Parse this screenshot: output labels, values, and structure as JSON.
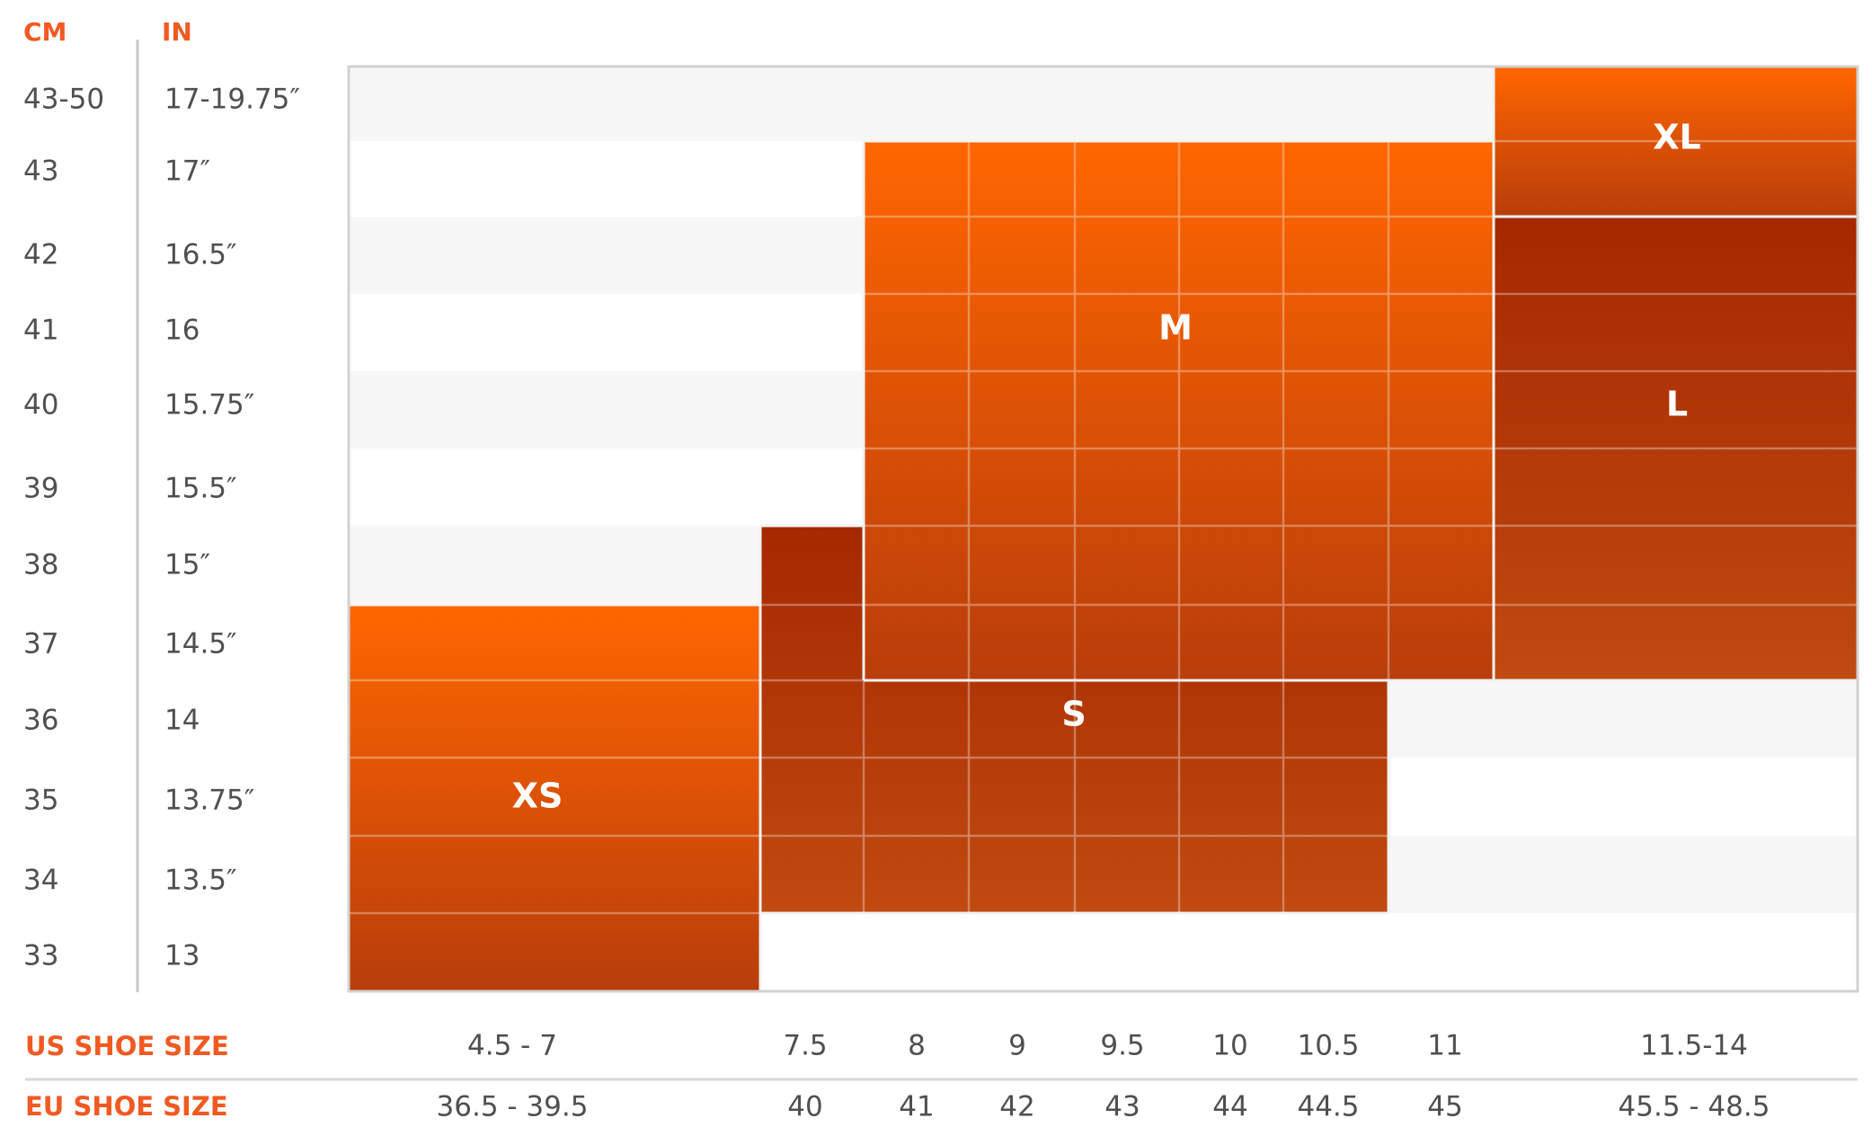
{
  "chart_data": {
    "type": "heatmap",
    "headers": {
      "cm": "CM",
      "in": "IN"
    },
    "rows": [
      {
        "cm": "43-50",
        "in": "17-19.75″"
      },
      {
        "cm": "43",
        "in": "17″"
      },
      {
        "cm": "42",
        "in": "16.5″"
      },
      {
        "cm": "41",
        "in": "16"
      },
      {
        "cm": "40",
        "in": "15.75″"
      },
      {
        "cm": "39",
        "in": "15.5″"
      },
      {
        "cm": "38",
        "in": "15″"
      },
      {
        "cm": "37",
        "in": "14.5″"
      },
      {
        "cm": "36",
        "in": "14"
      },
      {
        "cm": "35",
        "in": "13.75″"
      },
      {
        "cm": "34",
        "in": "13.5″"
      },
      {
        "cm": "33",
        "in": "13"
      }
    ],
    "us_label": "US SHOE SIZE",
    "eu_label": "EU SHOE SIZE",
    "columns": [
      {
        "us": "4.5 - 7",
        "eu": "36.5 - 39.5"
      },
      {
        "us": "7.5",
        "eu": "40"
      },
      {
        "us": "8",
        "eu": "41"
      },
      {
        "us": "9",
        "eu": "42"
      },
      {
        "us": "9.5",
        "eu": "43"
      },
      {
        "us": "10",
        "eu": "44"
      },
      {
        "us": "10.5",
        "eu": "44.5"
      },
      {
        "us": "11",
        "eu": "45"
      },
      {
        "us": "11.5-14",
        "eu": "45.5 - 48.5"
      }
    ],
    "sizes": [
      {
        "label": "XS",
        "columns": [
          "4.5 - 7"
        ],
        "cm_rows": [
          "37",
          "36",
          "35",
          "34",
          "33"
        ],
        "color_top": "#ff6600",
        "color_bottom": "#b83d0b"
      },
      {
        "label": "S",
        "columns": [
          "7.5",
          "8",
          "9",
          "9.5",
          "10",
          "10.5"
        ],
        "cm_rows": [
          "38",
          "37",
          "36",
          "35",
          "34"
        ],
        "color_top": "#a62800",
        "color_bottom": "#c04a10"
      },
      {
        "label": "M",
        "columns": [
          "8",
          "9",
          "9.5",
          "10",
          "10.5",
          "11"
        ],
        "cm_rows": [
          "43",
          "42",
          "41",
          "40",
          "39",
          "38",
          "37"
        ],
        "color_top": "#ff6600",
        "color_bottom": "#b93d0a"
      },
      {
        "label": "L",
        "columns": [
          "11.5-14"
        ],
        "cm_rows": [
          "42",
          "41",
          "40",
          "39",
          "38",
          "37"
        ],
        "color_top": "#a62800",
        "color_bottom": "#c04a10"
      },
      {
        "label": "XL",
        "columns": [
          "11.5-14"
        ],
        "cm_rows": [
          "43-50",
          "43"
        ],
        "color_top": "#ff6600",
        "color_bottom": "#b83d0b"
      }
    ],
    "colors": {
      "accent": "#f05a22",
      "text": "#4f4f4f",
      "stripe": "#f7f7f7",
      "frame": "#d2d2d2"
    }
  }
}
